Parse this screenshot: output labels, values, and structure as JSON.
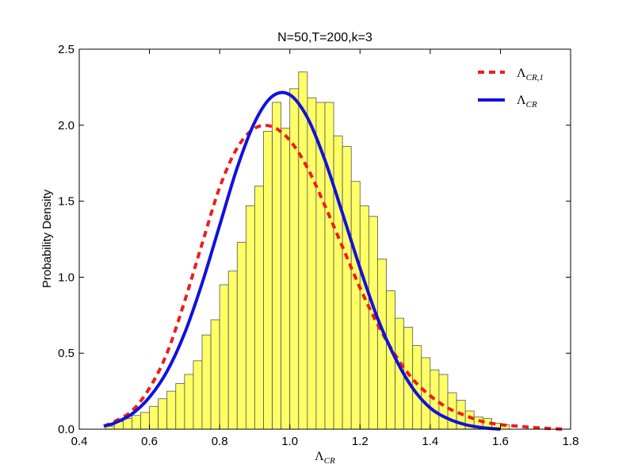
{
  "chart_data": {
    "type": "bar",
    "title": "N=50,T=200,k=3",
    "xlabel": {
      "base": "Λ",
      "sub": "CR"
    },
    "ylabel": "Probability Density",
    "xlim": [
      0.4,
      1.8
    ],
    "ylim": [
      0.0,
      2.5
    ],
    "xticks": [
      "0.4",
      "0.6",
      "0.8",
      "1.0",
      "1.2",
      "1.4",
      "1.6",
      "1.8"
    ],
    "yticks": [
      "0.0",
      "0.5",
      "1.0",
      "1.5",
      "2.0",
      "2.5"
    ],
    "grid": false,
    "legend_position": "top-right",
    "histogram": {
      "bin_start": 0.475,
      "bin_width": 0.025,
      "fill": "#ffff66",
      "edge": "#555555",
      "values": [
        0.02,
        0.05,
        0.07,
        0.09,
        0.11,
        0.15,
        0.2,
        0.25,
        0.3,
        0.36,
        0.45,
        0.62,
        0.72,
        0.95,
        1.04,
        1.23,
        1.47,
        1.6,
        1.96,
        2.15,
        1.98,
        2.24,
        2.35,
        2.18,
        2.15,
        2.15,
        1.93,
        1.86,
        1.63,
        1.47,
        1.4,
        1.12,
        0.91,
        0.73,
        0.67,
        0.55,
        0.47,
        0.39,
        0.36,
        0.24,
        0.19,
        0.12,
        0.08,
        0.07,
        0.04,
        0.03
      ]
    },
    "series": [
      {
        "name": {
          "base": "Λ",
          "sub": "CR,1"
        },
        "style": "dashed",
        "color": "#ee1c1c",
        "x": [
          0.47,
          0.5,
          0.55,
          0.6,
          0.65,
          0.7,
          0.75,
          0.8,
          0.85,
          0.9,
          0.95,
          1.0,
          1.05,
          1.1,
          1.15,
          1.2,
          1.25,
          1.3,
          1.35,
          1.4,
          1.45,
          1.5,
          1.55,
          1.6,
          1.65,
          1.7,
          1.78
        ],
        "y": [
          0.02,
          0.05,
          0.12,
          0.27,
          0.5,
          0.84,
          1.22,
          1.59,
          1.85,
          1.98,
          1.99,
          1.9,
          1.72,
          1.47,
          1.2,
          0.93,
          0.69,
          0.49,
          0.33,
          0.22,
          0.14,
          0.09,
          0.05,
          0.03,
          0.02,
          0.01,
          0.0
        ]
      },
      {
        "name": {
          "base": "Λ",
          "sub": "CR"
        },
        "style": "solid",
        "color": "#1111dd",
        "x": [
          0.47,
          0.5,
          0.55,
          0.6,
          0.65,
          0.7,
          0.75,
          0.8,
          0.85,
          0.9,
          0.95,
          1.0,
          1.05,
          1.1,
          1.15,
          1.2,
          1.25,
          1.3,
          1.35,
          1.4,
          1.45,
          1.5,
          1.55,
          1.6
        ],
        "y": [
          0.02,
          0.04,
          0.1,
          0.21,
          0.38,
          0.63,
          0.96,
          1.34,
          1.72,
          2.02,
          2.19,
          2.2,
          2.05,
          1.77,
          1.42,
          1.06,
          0.73,
          0.47,
          0.27,
          0.14,
          0.07,
          0.03,
          0.01,
          0.0
        ]
      }
    ]
  }
}
